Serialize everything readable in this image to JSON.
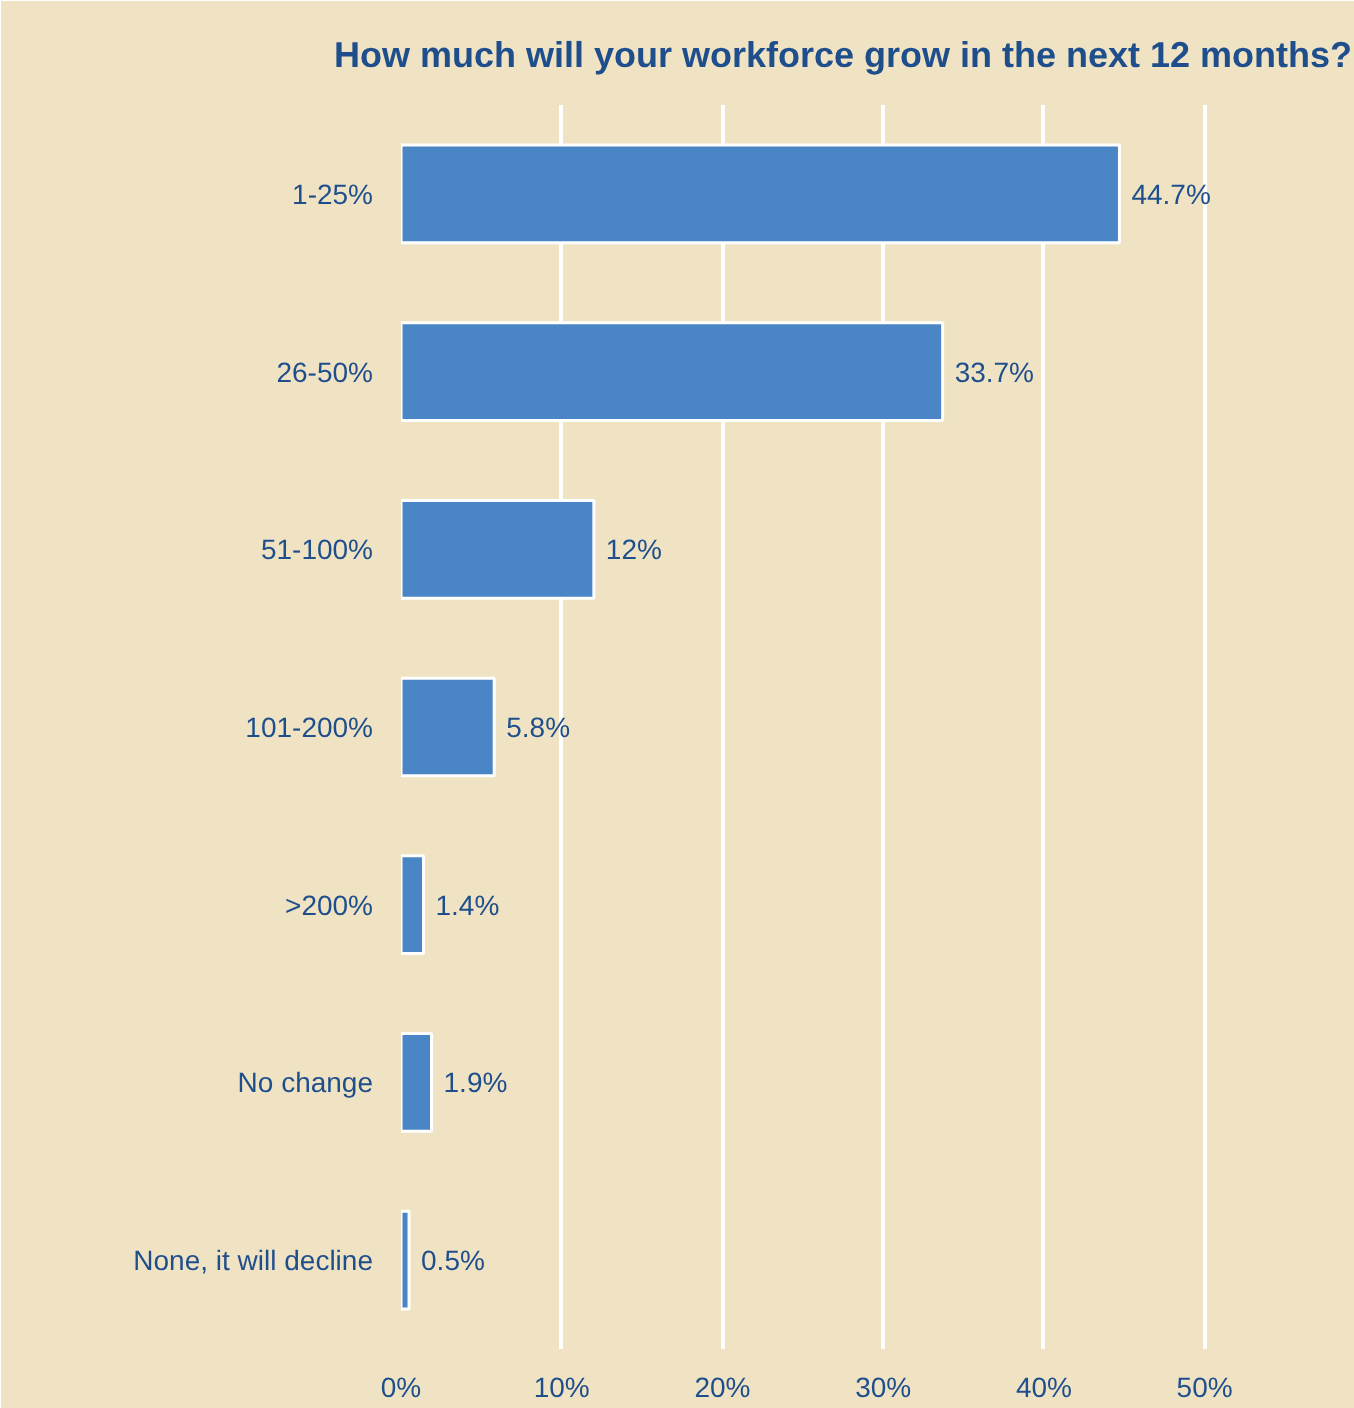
{
  "chart_data": {
    "type": "bar",
    "orientation": "horizontal",
    "title": "How much will your workforce grow in the next 12 months?",
    "categories": [
      "1-25%",
      "26-50%",
      "51-100%",
      "101-200%",
      ">200%",
      "No change",
      "None, it will decline"
    ],
    "values": [
      44.7,
      33.7,
      12,
      5.8,
      1.4,
      1.9,
      0.5
    ],
    "value_labels": [
      "44.7%",
      "33.7%",
      "12%",
      "5.8%",
      "1.4%",
      "1.9%",
      "0.5%"
    ],
    "color": "#4a86c6",
    "xlim": [
      0,
      55
    ],
    "xticks": [
      {
        "value": 0,
        "label": "0%"
      },
      {
        "value": 10,
        "label": "10%"
      },
      {
        "value": 20,
        "label": "20%"
      },
      {
        "value": 30,
        "label": "30%"
      },
      {
        "value": 40,
        "label": "40%"
      },
      {
        "value": 50,
        "label": "50%"
      }
    ],
    "grid": "x"
  }
}
